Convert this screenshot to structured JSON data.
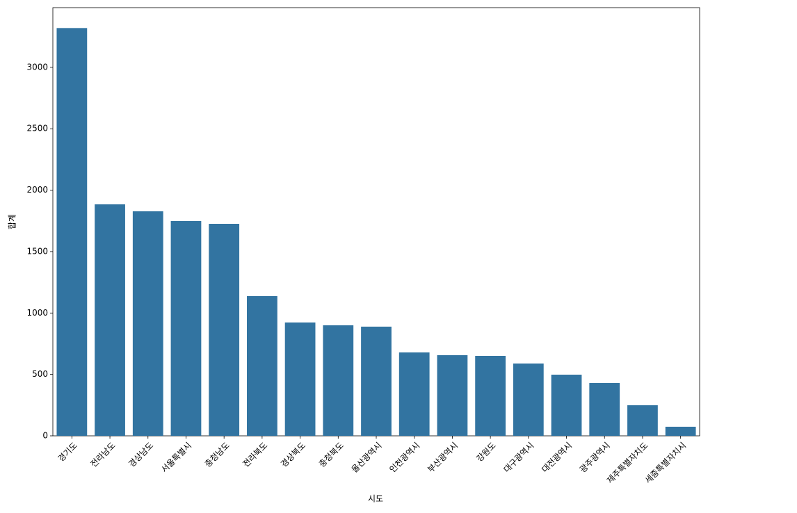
{
  "chart_data": {
    "type": "bar",
    "x_label": "시도",
    "y_label": "합계",
    "categories": [
      "경기도",
      "전라남도",
      "경상남도",
      "서울특별시",
      "충청남도",
      "전라북도",
      "경상북도",
      "충청북도",
      "울산광역시",
      "인천광역시",
      "부산광역시",
      "강원도",
      "대구광역시",
      "대전광역시",
      "광주광역시",
      "제주특별자치도",
      "세종특별자치시"
    ],
    "values": [
      3320,
      1885,
      1828,
      1749,
      1726,
      1138,
      923,
      900,
      889,
      679,
      657,
      651,
      589,
      498,
      430,
      249,
      74
    ],
    "color": "#3274a1",
    "ylim": [
      0,
      3486
    ],
    "yticks": [
      0,
      500,
      1000,
      1500,
      2000,
      2500,
      3000
    ],
    "grid": false
  }
}
